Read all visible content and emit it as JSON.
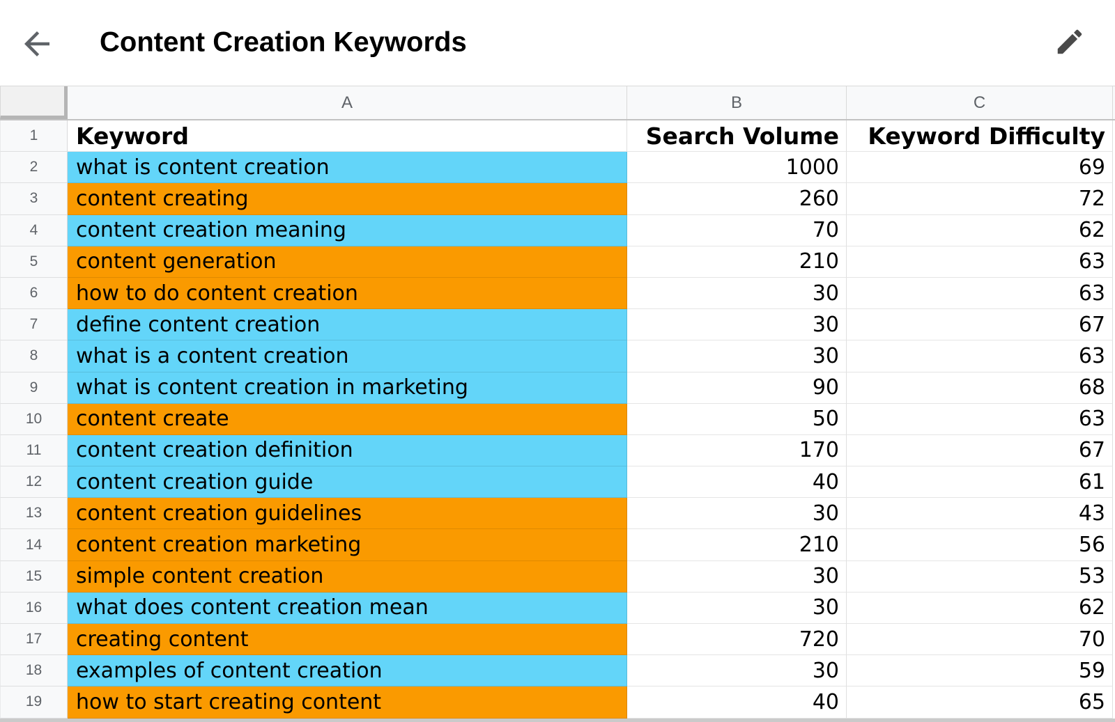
{
  "app_bar": {
    "title": "Content Creation Keywords"
  },
  "colors": {
    "highlight_cyan": "#63d5f9",
    "highlight_orange": "#fa9a00"
  },
  "grid": {
    "column_letters": [
      "A",
      "B",
      "C"
    ],
    "rows": [
      {
        "number": "1",
        "header": true,
        "highlight": null,
        "keyword": "Keyword",
        "search_volume": "Search Volume",
        "keyword_difficulty": "Keyword Difficulty"
      },
      {
        "number": "2",
        "header": false,
        "highlight": "cyan",
        "keyword": "what is content creation",
        "search_volume": "1000",
        "keyword_difficulty": "69"
      },
      {
        "number": "3",
        "header": false,
        "highlight": "orange",
        "keyword": "content creating",
        "search_volume": "260",
        "keyword_difficulty": "72"
      },
      {
        "number": "4",
        "header": false,
        "highlight": "cyan",
        "keyword": "content creation meaning",
        "search_volume": "70",
        "keyword_difficulty": "62"
      },
      {
        "number": "5",
        "header": false,
        "highlight": "orange",
        "keyword": "content generation",
        "search_volume": "210",
        "keyword_difficulty": "63"
      },
      {
        "number": "6",
        "header": false,
        "highlight": "orange",
        "keyword": "how to do content creation",
        "search_volume": "30",
        "keyword_difficulty": "63"
      },
      {
        "number": "7",
        "header": false,
        "highlight": "cyan",
        "keyword": "define content creation",
        "search_volume": "30",
        "keyword_difficulty": "67"
      },
      {
        "number": "8",
        "header": false,
        "highlight": "cyan",
        "keyword": "what is a content creation",
        "search_volume": "30",
        "keyword_difficulty": "63"
      },
      {
        "number": "9",
        "header": false,
        "highlight": "cyan",
        "keyword": "what is content creation in marketing",
        "search_volume": "90",
        "keyword_difficulty": "68"
      },
      {
        "number": "10",
        "header": false,
        "highlight": "orange",
        "keyword": "content create",
        "search_volume": "50",
        "keyword_difficulty": "63"
      },
      {
        "number": "11",
        "header": false,
        "highlight": "cyan",
        "keyword": "content creation definition",
        "search_volume": "170",
        "keyword_difficulty": "67"
      },
      {
        "number": "12",
        "header": false,
        "highlight": "cyan",
        "keyword": "content creation guide",
        "search_volume": "40",
        "keyword_difficulty": "61"
      },
      {
        "number": "13",
        "header": false,
        "highlight": "orange",
        "keyword": "content creation guidelines",
        "search_volume": "30",
        "keyword_difficulty": "43"
      },
      {
        "number": "14",
        "header": false,
        "highlight": "orange",
        "keyword": "content creation marketing",
        "search_volume": "210",
        "keyword_difficulty": "56"
      },
      {
        "number": "15",
        "header": false,
        "highlight": "orange",
        "keyword": "simple content creation",
        "search_volume": "30",
        "keyword_difficulty": "53"
      },
      {
        "number": "16",
        "header": false,
        "highlight": "cyan",
        "keyword": "what does content creation mean",
        "search_volume": "30",
        "keyword_difficulty": "62"
      },
      {
        "number": "17",
        "header": false,
        "highlight": "orange",
        "keyword": "creating content",
        "search_volume": "720",
        "keyword_difficulty": "70"
      },
      {
        "number": "18",
        "header": false,
        "highlight": "cyan",
        "keyword": "examples of content creation",
        "search_volume": "30",
        "keyword_difficulty": "59"
      },
      {
        "number": "19",
        "header": false,
        "highlight": "orange",
        "keyword": "how to start creating content",
        "search_volume": "40",
        "keyword_difficulty": "65"
      }
    ]
  }
}
